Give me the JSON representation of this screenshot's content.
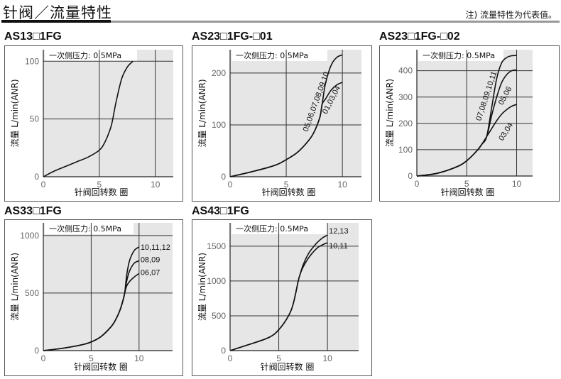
{
  "header": {
    "title": "针阀／流量特性",
    "note": "注) 流量特性为代表值。"
  },
  "common": {
    "pressure_label": "一次侧压力: 0.5MPa",
    "xlabel": "针阀回转数 圈",
    "ylabel": "流量 L/min(ANR)"
  },
  "chart_data": [
    {
      "type": "line",
      "title": "AS13□1FG",
      "xlim": [
        0,
        11.6
      ],
      "ylim": [
        0,
        110
      ],
      "xticks": [
        0,
        5,
        10
      ],
      "yticks": [
        0,
        50,
        100
      ],
      "series": [
        {
          "name": "",
          "x": [
            0,
            1,
            2,
            3,
            4,
            5,
            5.5,
            6,
            6.2,
            6.5,
            7,
            7.5,
            8
          ],
          "y": [
            0,
            5,
            9,
            13,
            17,
            23,
            30,
            42,
            50,
            65,
            85,
            95,
            100
          ]
        }
      ]
    },
    {
      "type": "line",
      "title": "AS23□1FG-□01",
      "xlim": [
        0,
        11.7
      ],
      "ylim": [
        0,
        245
      ],
      "xticks": [
        0,
        5,
        10
      ],
      "yticks": [
        0,
        100,
        200
      ],
      "series": [
        {
          "name": "05,06,07,08,09,10",
          "x": [
            0,
            2,
            4,
            5,
            6,
            7,
            7.5,
            8,
            8.2,
            8.5,
            9,
            9.5,
            10
          ],
          "y": [
            0,
            10,
            22,
            33,
            47,
            70,
            87,
            115,
            140,
            180,
            215,
            230,
            235
          ]
        },
        {
          "name": "01,03,04",
          "x": [
            0,
            2,
            4,
            5,
            6,
            7,
            7.5,
            8,
            8.2,
            8.5,
            9,
            9.5,
            10
          ],
          "y": [
            0,
            10,
            22,
            33,
            47,
            70,
            87,
            115,
            140,
            150,
            167,
            177,
            182
          ]
        }
      ]
    },
    {
      "type": "line",
      "title": "AS23□1FG-□02",
      "xlim": [
        0,
        11.6
      ],
      "ylim": [
        0,
        480
      ],
      "xticks": [
        0,
        5,
        10
      ],
      "yticks": [
        0,
        100,
        200,
        300,
        400
      ],
      "series": [
        {
          "name": "07,08,09,10,11",
          "x": [
            0,
            2,
            4,
            5,
            6,
            6.5,
            7,
            7.5,
            8,
            8.5,
            9,
            9.5,
            10
          ],
          "y": [
            0,
            10,
            35,
            58,
            95,
            120,
            150,
            260,
            370,
            430,
            450,
            457,
            458
          ]
        },
        {
          "name": "05,06",
          "x": [
            0,
            2,
            4,
            5,
            6,
            6.5,
            7,
            7.5,
            8,
            8.5,
            9,
            9.5,
            10
          ],
          "y": [
            0,
            10,
            35,
            58,
            95,
            120,
            150,
            230,
            300,
            355,
            385,
            400,
            403
          ]
        },
        {
          "name": "03,04",
          "x": [
            0,
            2,
            4,
            5,
            6,
            6.5,
            7,
            7.5,
            8,
            8.5,
            9,
            9.5,
            10
          ],
          "y": [
            0,
            10,
            35,
            58,
            95,
            120,
            150,
            180,
            210,
            235,
            252,
            265,
            272
          ]
        }
      ]
    },
    {
      "type": "line",
      "title": "AS33□1FG",
      "xlim": [
        0,
        13.5
      ],
      "ylim": [
        0,
        1110
      ],
      "xticks": [
        0,
        5,
        10
      ],
      "yticks": [
        0,
        500,
        1000
      ],
      "series": [
        {
          "name": "10,11,12",
          "x": [
            0,
            2,
            4,
            5,
            6,
            7,
            7.5,
            8,
            8.3,
            8.5,
            8.7,
            9,
            9.5,
            10
          ],
          "y": [
            0,
            20,
            50,
            75,
            120,
            200,
            260,
            350,
            430,
            500,
            650,
            780,
            870,
            900
          ]
        },
        {
          "name": "08,09",
          "x": [
            0,
            2,
            4,
            5,
            6,
            7,
            7.5,
            8,
            8.3,
            8.5,
            8.7,
            9,
            9.5,
            10
          ],
          "y": [
            0,
            20,
            50,
            75,
            120,
            200,
            260,
            350,
            430,
            500,
            600,
            690,
            760,
            780
          ]
        },
        {
          "name": "06,07",
          "x": [
            0,
            2,
            4,
            5,
            6,
            7,
            7.5,
            8,
            8.3,
            8.5,
            8.7,
            9,
            9.5,
            10
          ],
          "y": [
            0,
            20,
            50,
            75,
            120,
            200,
            260,
            350,
            430,
            500,
            560,
            600,
            640,
            670
          ]
        }
      ]
    },
    {
      "type": "line",
      "title": "AS43□1FG",
      "xlim": [
        0,
        13.2
      ],
      "ylim": [
        0,
        1835
      ],
      "xticks": [
        0,
        5,
        10
      ],
      "yticks": [
        0,
        500,
        1000,
        1500
      ],
      "series": [
        {
          "name": "12,13",
          "x": [
            0,
            2,
            4,
            5,
            6,
            6.5,
            7,
            7.2,
            7.5,
            8,
            8.5,
            9,
            9.5,
            10
          ],
          "y": [
            0,
            90,
            190,
            300,
            500,
            680,
            1000,
            1100,
            1230,
            1380,
            1480,
            1560,
            1620,
            1660
          ]
        },
        {
          "name": "10,11",
          "x": [
            0,
            2,
            4,
            5,
            6,
            6.5,
            7,
            7.2,
            7.5,
            8,
            8.5,
            9,
            9.5,
            10
          ],
          "y": [
            0,
            90,
            190,
            300,
            500,
            680,
            1000,
            1100,
            1200,
            1320,
            1410,
            1480,
            1520,
            1550
          ]
        }
      ]
    }
  ]
}
